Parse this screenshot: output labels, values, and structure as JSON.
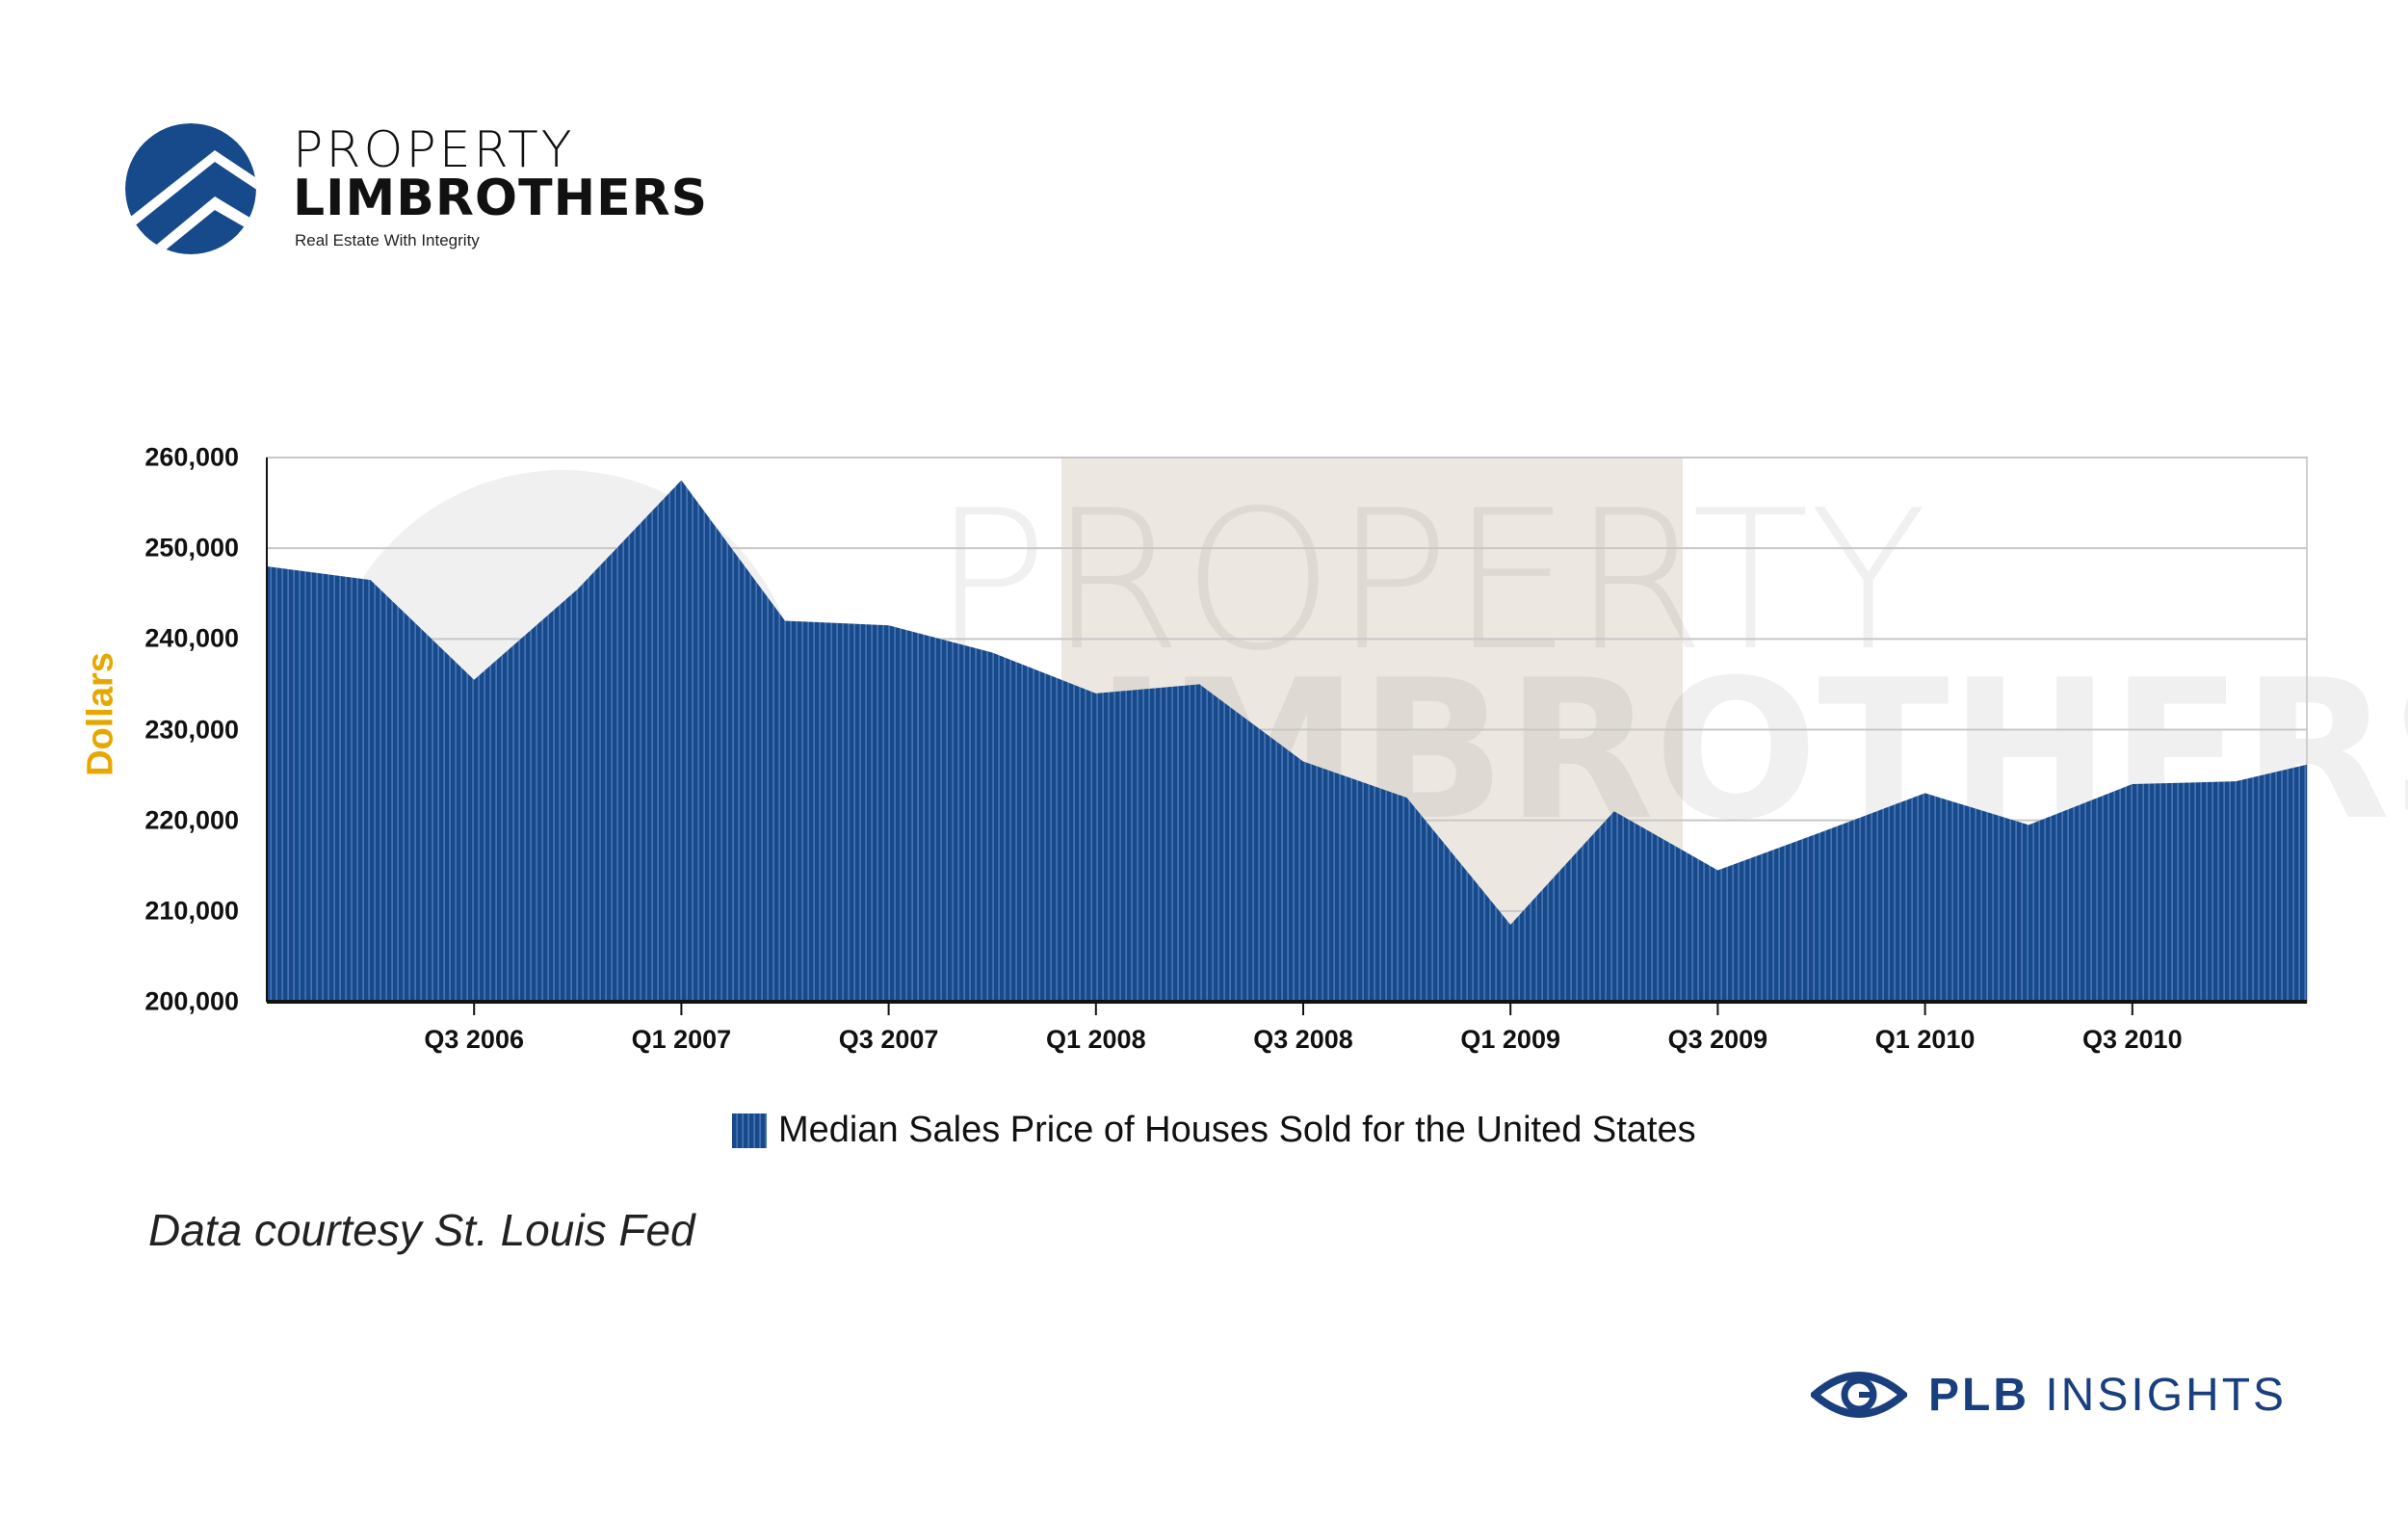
{
  "brand": {
    "logo_line1": "PROPERTY",
    "logo_line2": "LIMBROTHERS",
    "tagline": "Real Estate With Integrity",
    "color": "#174a8b",
    "footer_label_bold": "PLB",
    "footer_label": "INSIGHTS"
  },
  "source_note": "Data courtesy St. Louis Fed",
  "chart_data": {
    "type": "area",
    "title": "",
    "xlabel": "",
    "ylabel": "Dollars",
    "ylim": [
      200000,
      260000
    ],
    "yticks": [
      "200,000",
      "210,000",
      "220,000",
      "230,000",
      "240,000",
      "250,000",
      "260,000"
    ],
    "ytick_values": [
      200000,
      210000,
      220000,
      230000,
      240000,
      250000,
      260000
    ],
    "xtick_labels": [
      "Q3 2006",
      "Q1 2007",
      "Q3 2007",
      "Q1 2008",
      "Q3 2008",
      "Q1 2009",
      "Q3 2009",
      "Q1 2010",
      "Q3 2010"
    ],
    "grid": true,
    "legend_position": "bottom",
    "x": [
      "Q1 2006",
      "Q2 2006",
      "Q3 2006",
      "Q4 2006",
      "Q1 2007",
      "Q2 2007",
      "Q3 2007",
      "Q4 2007",
      "Q1 2008",
      "Q2 2008",
      "Q3 2008",
      "Q4 2008",
      "Q1 2009",
      "Q2 2009",
      "Q3 2009",
      "Q4 2009",
      "Q1 2010",
      "Q2 2010",
      "Q3 2010",
      "Q4 2010",
      "Q1 2011"
    ],
    "series": [
      {
        "name": "Median Sales Price of Houses Sold for the United States",
        "color": "#174a8b",
        "values": [
          248000,
          246500,
          235500,
          245500,
          257500,
          242000,
          241500,
          238500,
          234000,
          235000,
          226500,
          222500,
          208500,
          221000,
          214500,
          218700,
          223000,
          219500,
          224000,
          224300,
          227000
        ]
      }
    ]
  }
}
